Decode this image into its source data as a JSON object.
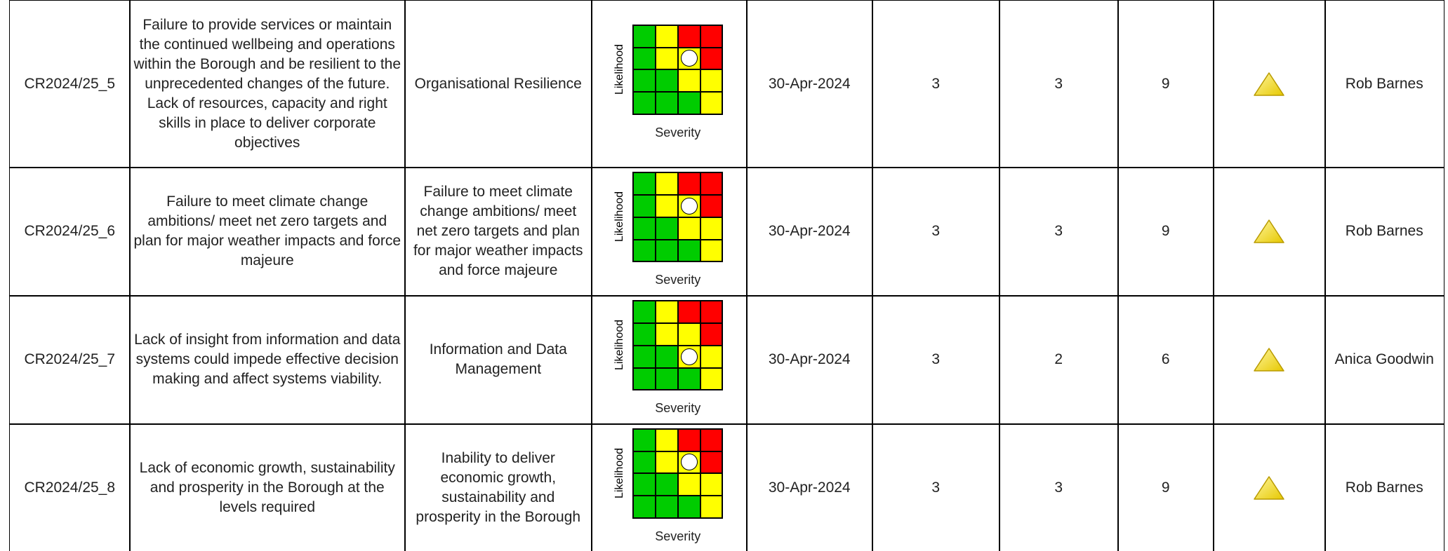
{
  "matrix_labels": {
    "y": "Likelihood",
    "x": "Severity"
  },
  "table": {
    "rows": [
      {
        "ref": "CR2024/25_5",
        "description": "Failure to provide services or maintain the continued wellbeing and operations within the Borough and be resilient to the unprecedented changes of the future. Lack of resources, capacity and right skills in place to deliver corporate objectives",
        "category": "Organisational Resilience",
        "date": "30-Apr-2024",
        "severity": 3,
        "likelihood": 3,
        "score": 9,
        "owner": "Rob Barnes"
      },
      {
        "ref": "CR2024/25_6",
        "description": "Failure to meet climate change ambitions/ meet net zero targets and plan for major weather impacts and force majeure",
        "category": "Failure to meet climate change ambitions/ meet net zero targets and plan for major weather impacts and force majeure",
        "date": "30-Apr-2024",
        "severity": 3,
        "likelihood": 3,
        "score": 9,
        "owner": "Rob Barnes"
      },
      {
        "ref": "CR2024/25_7",
        "description": "Lack of insight from information and data systems could impede effective decision making and affect systems viability.",
        "category": "Information and Data Management",
        "date": "30-Apr-2024",
        "severity": 3,
        "likelihood": 2,
        "score": 6,
        "owner": "Anica Goodwin"
      },
      {
        "ref": "CR2024/25_8",
        "description": "Lack of economic growth, sustainability and prosperity in the Borough at the levels required",
        "category": "Inability to deliver economic growth, sustainability and prosperity in the Borough",
        "date": "30-Apr-2024",
        "severity": 3,
        "likelihood": 3,
        "score": 9,
        "owner": "Rob Barnes"
      }
    ]
  }
}
